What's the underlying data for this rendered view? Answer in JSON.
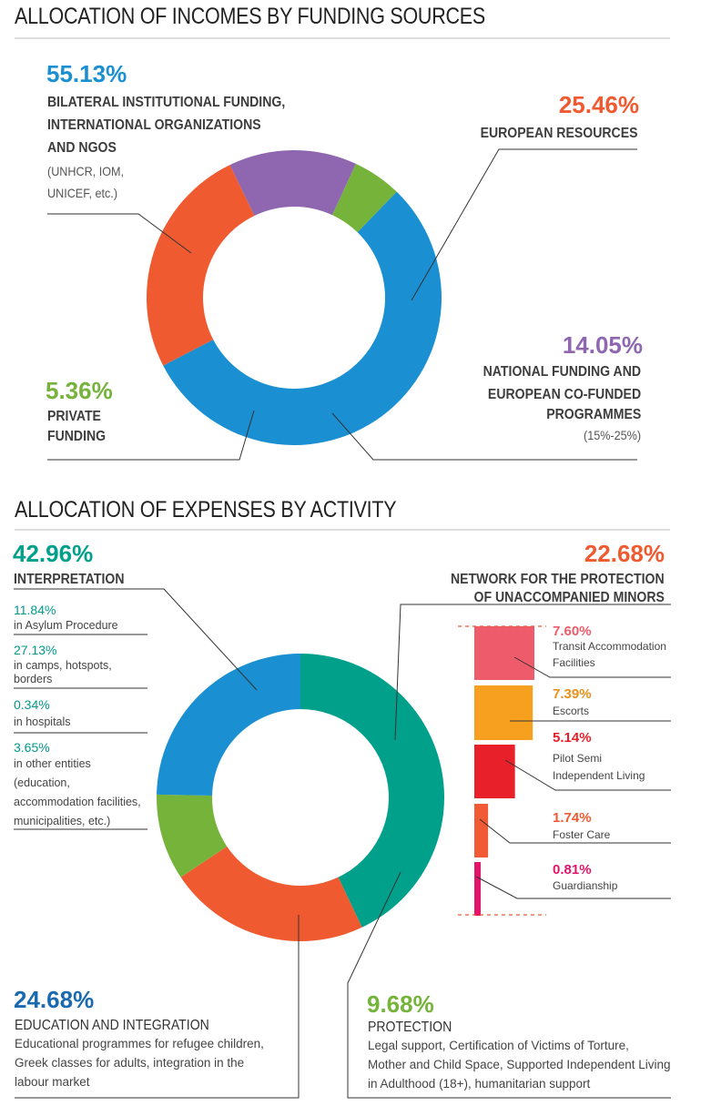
{
  "incomes": {
    "title": "ALLOCATION OF INCOMES BY FUNDING SOURCES",
    "bilateral": {
      "pct": "55.13%",
      "label_lines": [
        "BILATERAL INSTITUTIONAL FUNDING,",
        "INTERNATIONAL ORGANIZATIONS",
        "AND NGOs"
      ],
      "note_lines": [
        "(UNHCR, IOM,",
        "UNICEF, etc.)"
      ]
    },
    "european": {
      "pct": "25.46%",
      "label": "EUROPEAN RESOURCES"
    },
    "national": {
      "pct": "14.05%",
      "label_lines": [
        "NATIONAL FUNDING AND",
        "EUROPEAN CO-FUNDED",
        "PROGRAMMES"
      ],
      "note": "(15%-25%)"
    },
    "private": {
      "pct": "5.36%",
      "label_lines": [
        "PRIVATE",
        "FUNDING"
      ]
    }
  },
  "expenses": {
    "title": "ALLOCATION OF EXPENSES BY ACTIVITY",
    "interpretation": {
      "pct": "42.96%",
      "label": "INTERPRETATION",
      "sub": [
        {
          "pct": "11.84%",
          "desc": "in Asylum Procedure"
        },
        {
          "pct": "27.13%",
          "desc": "in camps, hotspots, borders"
        },
        {
          "pct": "0.34%",
          "desc": "in hospitals"
        },
        {
          "pct": "3.65%",
          "desc_lines": [
            "in other entities",
            "(education,",
            "accommodation facilities,",
            "municipalities, etc.)"
          ]
        }
      ]
    },
    "network": {
      "pct": "22.68%",
      "label_lines": [
        "NETWORK FOR THE PROTECTION",
        "OF UNACCOMPANIED MINORS"
      ],
      "breakdown": [
        {
          "pct": "7.60%",
          "desc_lines": [
            "Transit Accommodation",
            "Facilities"
          ],
          "color": "#ee5b6a"
        },
        {
          "pct": "7.39%",
          "desc_lines": [
            "Escorts"
          ],
          "color": "#f7a020"
        },
        {
          "pct": "5.14%",
          "desc_lines": [
            "Pilot Semi",
            "Independent Living"
          ],
          "color": "#e8202a"
        },
        {
          "pct": "1.74%",
          "desc_lines": [
            "Foster Care"
          ],
          "color": "#f05a34"
        },
        {
          "pct": "0.81%",
          "desc_lines": [
            "Guardianship"
          ],
          "color": "#e2156b"
        }
      ]
    },
    "education": {
      "pct": "24.68%",
      "label": "EDUCATION AND INTEGRATION",
      "desc_lines": [
        "Educational programmes for refugee children,",
        "Greek classes for adults, integration in the",
        "labour market"
      ]
    },
    "protection": {
      "pct": "9.68%",
      "label": "PROTECTION",
      "desc_lines": [
        "Legal support, Certification of Victims of Torture,",
        "Mother and Child Space, Supported Independent Living",
        "in Adulthood (18+), humanitarian support"
      ]
    }
  },
  "chart_data": [
    {
      "type": "pie",
      "title": "ALLOCATION OF INCOMES BY FUNDING SOURCES",
      "donut": true,
      "categories": [
        "Bilateral institutional funding, international organizations and NGOs",
        "European resources",
        "National funding and European co-funded programmes",
        "Private funding"
      ],
      "values": [
        55.13,
        25.46,
        14.05,
        5.36
      ],
      "colors": [
        "#1a8fd1",
        "#f05a30",
        "#8e67b0",
        "#76b33b"
      ]
    },
    {
      "type": "pie",
      "title": "ALLOCATION OF EXPENSES BY ACTIVITY",
      "donut": true,
      "categories": [
        "Interpretation",
        "Network for the protection of unaccompanied minors",
        "Protection",
        "Education and integration"
      ],
      "values": [
        42.96,
        22.68,
        9.68,
        24.68
      ],
      "colors": [
        "#00a08a",
        "#f05a30",
        "#76b33b",
        "#1a8fd1"
      ]
    },
    {
      "type": "bar",
      "title": "NETWORK FOR THE PROTECTION OF UNACCOMPANIED MINORS",
      "categories": [
        "Transit Accommodation Facilities",
        "Escorts",
        "Pilot Semi Independent Living",
        "Foster Care",
        "Guardianship"
      ],
      "values": [
        7.6,
        7.39,
        5.14,
        1.74,
        0.81
      ],
      "colors": [
        "#ee5b6a",
        "#f7a020",
        "#e8202a",
        "#f05a34",
        "#e2156b"
      ]
    }
  ]
}
